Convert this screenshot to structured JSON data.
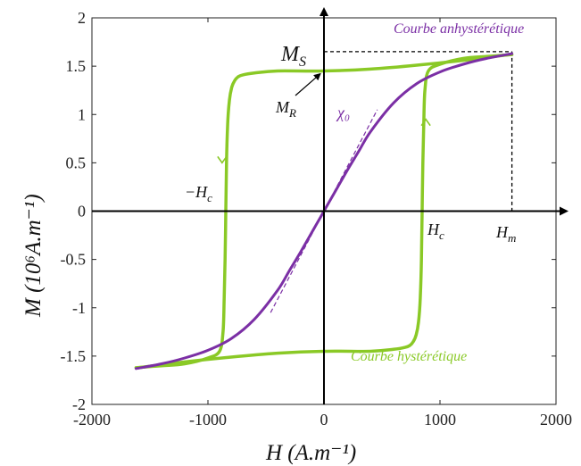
{
  "chart_data": {
    "type": "line",
    "title": "",
    "xlabel": "H (A.m⁻¹)",
    "ylabel": "M (10⁶A.m⁻¹)",
    "xlim": [
      -2000,
      2000
    ],
    "ylim": [
      -2,
      2
    ],
    "x_ticks": [
      -2000,
      -1000,
      0,
      1000,
      2000
    ],
    "y_ticks": [
      -2,
      -1.5,
      -1,
      -0.5,
      0,
      0.5,
      1,
      1.5,
      2
    ],
    "x_tick_labels": [
      "-2000",
      "-1000",
      "0",
      "1000",
      "2000"
    ],
    "y_tick_labels": [
      "-2",
      "-1.5",
      "-1",
      "-0.5",
      "0",
      "0.5",
      "1",
      "1.5",
      "2"
    ],
    "grid": false,
    "colors": {
      "hysteresis": "#8ac926",
      "anhysteretic": "#7b2fa5",
      "axes": "#000000"
    },
    "series": [
      {
        "name": "Courbe hystérétique",
        "branches": [
          {
            "x": [
              1620,
              1400,
              1200,
              1000,
              900,
              870,
              860,
              852,
              846,
              840,
              830,
              815,
              795,
              770,
              740,
              700,
              600,
              400,
              0,
              -400,
              -800,
              -1200,
              -1600
            ],
            "y": [
              1.62,
              1.6,
              1.58,
              1.52,
              1.45,
              1.25,
              0.9,
              0.5,
              0,
              -0.5,
              -0.9,
              -1.15,
              -1.28,
              -1.35,
              -1.39,
              -1.41,
              -1.43,
              -1.45,
              -1.45,
              -1.47,
              -1.51,
              -1.56,
              -1.62
            ]
          },
          {
            "x": [
              -1620,
              -1400,
              -1200,
              -1000,
              -900,
              -870,
              -860,
              -852,
              -846,
              -840,
              -830,
              -815,
              -795,
              -770,
              -740,
              -700,
              -600,
              -400,
              0,
              400,
              800,
              1200,
              1600
            ],
            "y": [
              -1.62,
              -1.6,
              -1.58,
              -1.52,
              -1.45,
              -1.25,
              -0.9,
              -0.5,
              0,
              0.5,
              0.9,
              1.15,
              1.28,
              1.35,
              1.39,
              1.41,
              1.43,
              1.45,
              1.45,
              1.47,
              1.51,
              1.56,
              1.62
            ]
          }
        ]
      },
      {
        "name": "Courbe anhystérétique",
        "x": [
          -1620,
          -1400,
          -1200,
          -1000,
          -800,
          -600,
          -400,
          -300,
          -200,
          -100,
          0,
          100,
          200,
          300,
          400,
          600,
          800,
          1000,
          1200,
          1400,
          1620
        ],
        "y": [
          -1.63,
          -1.58,
          -1.52,
          -1.44,
          -1.32,
          -1.12,
          -0.82,
          -0.62,
          -0.42,
          -0.21,
          0,
          0.21,
          0.42,
          0.62,
          0.82,
          1.12,
          1.32,
          1.44,
          1.52,
          1.58,
          1.63
        ]
      }
    ],
    "tangent": {
      "label": "χ₀",
      "x": [
        -460,
        460
      ],
      "y": [
        -1.05,
        1.05
      ]
    },
    "markers": {
      "Ms": {
        "label": "M",
        "sub": "S",
        "value": 1.65
      },
      "Hm": {
        "label": "H",
        "sub": "m",
        "value": 1620
      },
      "Hc_pos": {
        "label": "H",
        "sub": "c",
        "value": 846
      },
      "Hc_neg": {
        "label": "−H",
        "sub": "c",
        "value": -846
      },
      "Mr": {
        "label": "M",
        "sub": "R",
        "value": 1.45
      }
    },
    "annotations": {
      "anhysteretic_label": "Courbe anhystérétique",
      "hysteretic_label": "Courbe hystérétique"
    }
  }
}
